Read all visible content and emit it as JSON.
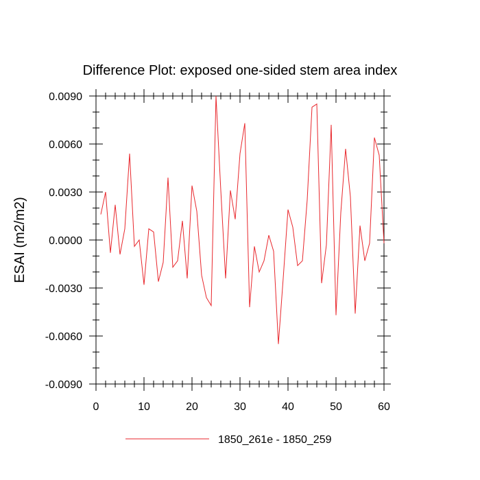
{
  "chart_data": {
    "type": "line",
    "title": "Difference Plot: exposed one-sided stem area index",
    "xlabel": "",
    "ylabel": "ESAI  (m2/m2)",
    "xlim": [
      0,
      60
    ],
    "ylim": [
      -0.009,
      0.009
    ],
    "x_ticks": [
      0,
      10,
      20,
      30,
      40,
      50,
      60
    ],
    "x_tick_labels": [
      "0",
      "10",
      "20",
      "30",
      "40",
      "50",
      "60"
    ],
    "y_ticks": [
      -0.009,
      -0.006,
      -0.003,
      0.0,
      0.003,
      0.006,
      0.009
    ],
    "y_tick_labels": [
      "-0.0090",
      "-0.0060",
      "-0.0030",
      "0.0000",
      "0.0030",
      "0.0060",
      "0.0090"
    ],
    "grid": false,
    "legend_position": "bottom-center",
    "series": [
      {
        "name": "1850_261e - 1850_259",
        "color": "#e8262b",
        "x": [
          1,
          2,
          3,
          4,
          5,
          6,
          7,
          8,
          9,
          10,
          11,
          12,
          13,
          14,
          15,
          16,
          17,
          18,
          19,
          20,
          21,
          22,
          23,
          24,
          25,
          26,
          27,
          28,
          29,
          30,
          31,
          32,
          33,
          34,
          35,
          36,
          37,
          38,
          39,
          40,
          41,
          42,
          43,
          44,
          45,
          46,
          47,
          48,
          49,
          50,
          51,
          52,
          53,
          54,
          55,
          56,
          57,
          58,
          59,
          60
        ],
        "y": [
          0.0016,
          0.003,
          -0.0008,
          0.0022,
          -0.0009,
          0.0007,
          0.0054,
          -0.0004,
          0.0,
          -0.0028,
          0.0007,
          0.0005,
          -0.0026,
          -0.0014,
          0.0039,
          -0.0017,
          -0.0013,
          0.0012,
          -0.0024,
          0.0034,
          0.0018,
          -0.0022,
          -0.0036,
          -0.0041,
          0.009,
          0.0031,
          -0.0024,
          0.0031,
          0.0013,
          0.0054,
          0.0073,
          -0.0042,
          -0.0004,
          -0.002,
          -0.0013,
          0.0003,
          -0.0007,
          -0.0065,
          -0.0024,
          0.0019,
          0.0008,
          -0.0016,
          -0.0013,
          0.0025,
          0.0083,
          0.0085,
          -0.0027,
          -0.0003,
          0.0072,
          -0.0047,
          0.0017,
          0.0057,
          0.0027,
          -0.0046,
          0.0009,
          -0.0013,
          -0.0002,
          0.0064,
          0.0053,
          -0.0002
        ]
      }
    ]
  }
}
